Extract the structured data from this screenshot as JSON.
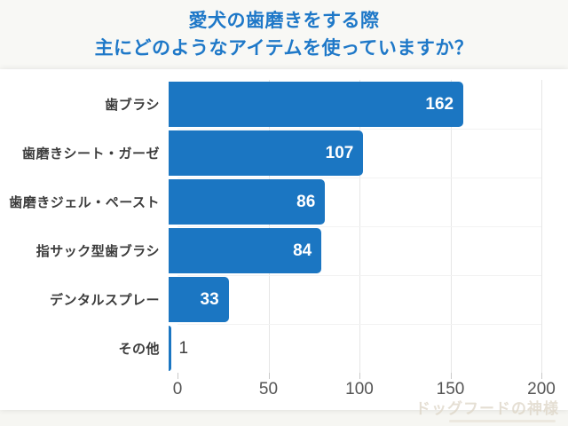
{
  "title": {
    "line1": "愛犬の歯磨きをする際",
    "line2": "主にどのようなアイテムを使っていますか？"
  },
  "chart_data": {
    "type": "bar",
    "orientation": "horizontal",
    "title": "愛犬の歯磨きをする際 主にどのようなアイテムを使っていますか？",
    "categories": [
      "歯ブラシ",
      "歯磨きシート・ガーゼ",
      "歯磨きジェル・ペースト",
      "指サック型歯ブラシ",
      "デンタルスプレー",
      "その他"
    ],
    "values": [
      162,
      107,
      86,
      84,
      33,
      1
    ],
    "xlabel": "",
    "ylabel": "",
    "xlim": [
      0,
      200
    ],
    "xticks": [
      0,
      50,
      100,
      150,
      200
    ],
    "grid": "vertical-light-gray",
    "legend": "none",
    "value_label_style": "inside bar end in white, outside in dark gray for tiny bars"
  },
  "colors": {
    "bar": "#1b76c2",
    "title_text": "#1e78c8",
    "category_label": "#3c3c3c",
    "value_label_inside": "#ffffff",
    "value_label_outside": "#3f3f3f",
    "axis_label": "#555555",
    "gridline": "#e6e6e6",
    "row_separator": "#f2f2f2",
    "tick": "#c9c9c9",
    "page_background": "#f6f6f2",
    "card_background": "#ffffff",
    "watermark": "#ddd5c6"
  },
  "watermark": {
    "text": "ドッグフードの神様"
  }
}
